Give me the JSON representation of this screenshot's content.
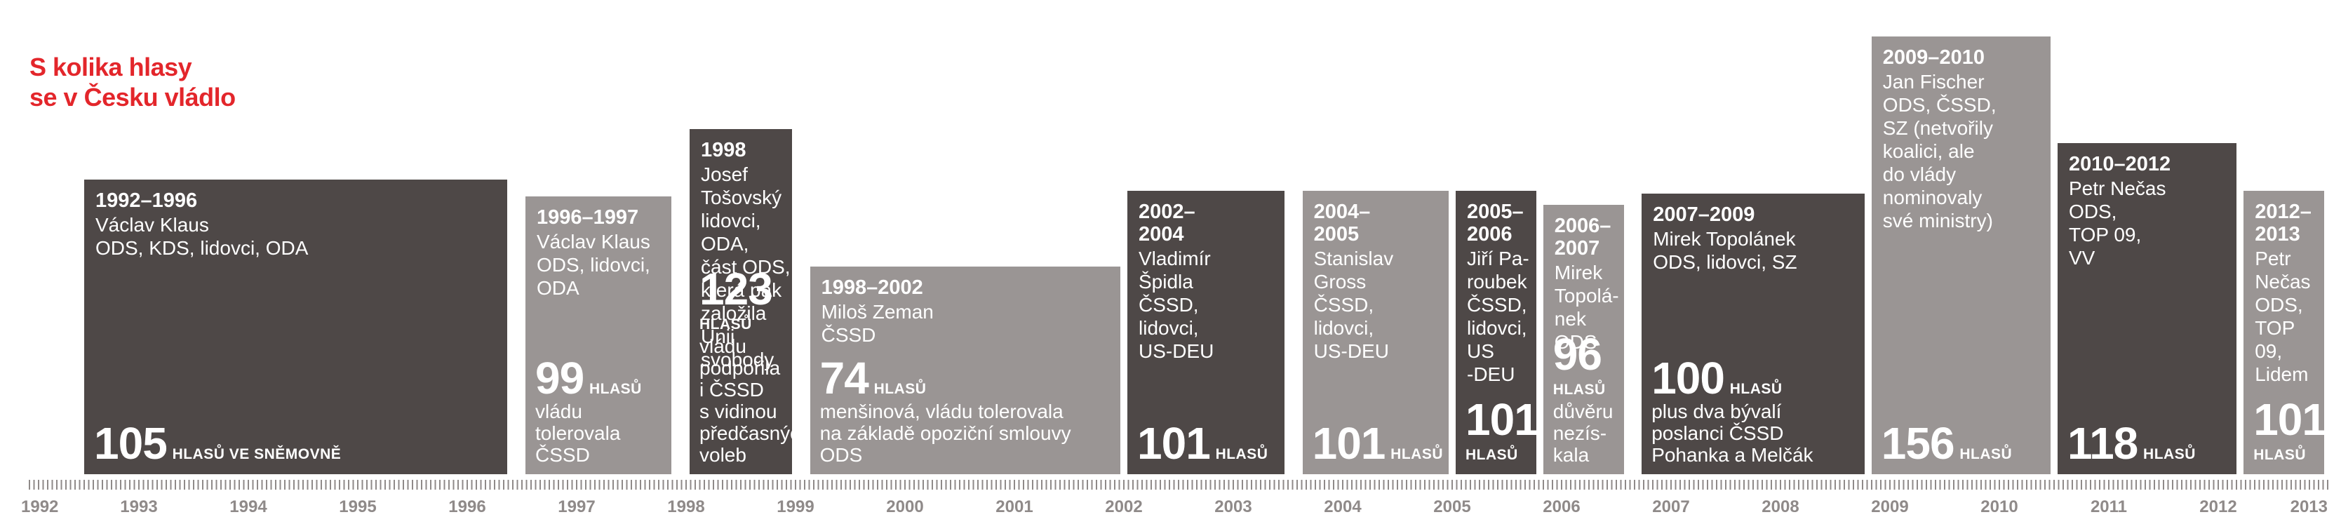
{
  "title_lines": [
    "S kolika hlasy",
    "se v Česku vládlo"
  ],
  "colors": {
    "title": "#e3262b",
    "dark": "#4e4847",
    "light": "#9a9594",
    "axis": "#8f8a89",
    "text": "#ffffff"
  },
  "axis": {
    "range": [
      1992,
      2013
    ],
    "years": [
      "1992",
      "1993",
      "1994",
      "1995",
      "1996",
      "1997",
      "1998",
      "1999",
      "2000",
      "2001",
      "2002",
      "2003",
      "2004",
      "2005",
      "2006",
      "2007",
      "2008",
      "2009",
      "2010",
      "2011",
      "2012",
      "2013"
    ]
  },
  "chart_data": {
    "type": "bar",
    "title": "S kolika hlasy se v Česku vládlo",
    "xlabel": "",
    "ylabel": "",
    "x_range": [
      1992,
      2013
    ],
    "values_unit": "hlasů",
    "governments": [
      {
        "years": "1992–1996",
        "pm": "Václav Klaus",
        "parties": "ODS, KDS, lidovci, ODA",
        "start": 1992.5,
        "end": 1996.4,
        "votes": 105,
        "vote_label": "HLASŮ VE SNĚMOVNĚ",
        "note": ""
      },
      {
        "years": "1996–1997",
        "pm": "Václav Klaus",
        "parties": "ODS, lidovci,\nODA",
        "start": 1996.5,
        "end": 1997.9,
        "votes": 99,
        "vote_label": "HLASŮ",
        "note": "vládu\ntolerovala\nČSSD"
      },
      {
        "years": "1998",
        "pm": "Josef Tošovský",
        "parties": "lidovci, ODA,\nčást ODS,\nkterá pak\nzaložila Unii\nsvobody",
        "start": 1998.0,
        "end": 1999.0,
        "votes": 123,
        "vote_label": "HLASŮ",
        "note": "vládu podpořila\ni ČSSD\ns vidinou\npředčasných\nvoleb"
      },
      {
        "years": "1998–2002",
        "pm": "Miloš Zeman",
        "parties": "ČSSD",
        "start": 1999.1,
        "end": 2002.0,
        "votes": 74,
        "vote_label": "HLASŮ",
        "note": "menšinová, vládu tolerovala\nna základě opoziční smlouvy\nODS"
      },
      {
        "years": "2002–\n2004",
        "pm": "Vladimír\nŠpidla",
        "parties": "ČSSD,\nlidovci,\nUS-DEU",
        "start": 2002.0,
        "end": 2003.5,
        "votes": 101,
        "vote_label": "HLASŮ",
        "note": ""
      },
      {
        "years": "2004–\n2005",
        "pm": "Stanislav\nGross",
        "parties": "ČSSD,\nlidovci,\nUS-DEU",
        "start": 2003.6,
        "end": 2005.0,
        "votes": 101,
        "vote_label": "HLASŮ",
        "note": ""
      },
      {
        "years": "2005–\n2006",
        "pm": "Jiří Pa-\nroubek",
        "parties": "ČSSD,\nlidovci,\nUS\n-DEU",
        "start": 2005.0,
        "end": 2005.8,
        "votes": 101,
        "vote_label": "HLASŮ",
        "note": ""
      },
      {
        "years": "2006–\n2007",
        "pm": "Mirek\nTopolá-\nnek",
        "parties": "ODS",
        "start": 2005.8,
        "end": 2006.6,
        "votes": 96,
        "vote_label": "HLASŮ",
        "note": "důvěru\nnezís-\nkala"
      },
      {
        "years": "2007–2009",
        "pm": "Mirek Topolánek",
        "parties": "ODS, lidovci, SZ",
        "start": 2006.7,
        "end": 2008.8,
        "votes": 100,
        "vote_label": "HLASŮ",
        "note": "plus dva bývalí\nposlanci ČSSD\nPohanka a Melčák"
      },
      {
        "years": "2009–2010",
        "pm": "Jan Fischer",
        "parties": "ODS, ČSSD,\nSZ (netvořily\nkoalici, ale\ndo vlády\nnominovaly\nsvé ministry)",
        "start": 2008.8,
        "end": 2010.5,
        "votes": 156,
        "vote_label": "HLASŮ",
        "note": ""
      },
      {
        "years": "2010–2012",
        "pm": "Petr Nečas",
        "parties": "ODS,\nTOP 09,\nVV",
        "start": 2010.5,
        "end": 2012.2,
        "votes": 118,
        "vote_label": "HLASŮ",
        "note": ""
      },
      {
        "years": "2012–\n2013",
        "pm": "Petr\nNečas",
        "parties": "ODS,\nTOP\n09,\nLidem",
        "start": 2012.2,
        "end": 2013.0,
        "votes": 101,
        "vote_label": "HLASŮ",
        "note": ""
      }
    ]
  }
}
